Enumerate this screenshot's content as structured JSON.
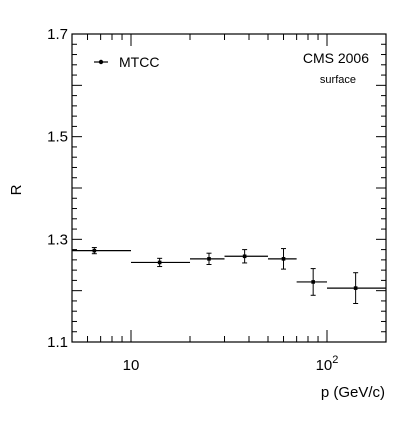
{
  "chart_data": {
    "type": "scatter",
    "xlabel": "p (GeV/c)",
    "ylabel": "R",
    "xscale": "log",
    "xlim": [
      5,
      200
    ],
    "ylim": [
      1.1,
      1.7
    ],
    "grid": false,
    "legend_placement": "top-left",
    "x_ticks": [
      {
        "value": 10,
        "label": "10"
      },
      {
        "value": 100,
        "label": "10",
        "sup": "2"
      }
    ],
    "y_ticks": [
      {
        "value": 1.1,
        "label": "1.1"
      },
      {
        "value": 1.3,
        "label": "1.3"
      },
      {
        "value": 1.5,
        "label": "1.5"
      },
      {
        "value": 1.7,
        "label": "1.7"
      }
    ],
    "series": [
      {
        "name": "MTCC",
        "points": [
          {
            "x": 6.5,
            "xlow": 5,
            "xhigh": 10,
            "y": 1.278,
            "yerr": 0.006
          },
          {
            "x": 14,
            "xlow": 10,
            "xhigh": 20,
            "y": 1.255,
            "yerr": 0.008
          },
          {
            "x": 25,
            "xlow": 20,
            "xhigh": 30,
            "y": 1.262,
            "yerr": 0.011
          },
          {
            "x": 38,
            "xlow": 30,
            "xhigh": 50,
            "y": 1.267,
            "yerr": 0.013
          },
          {
            "x": 60,
            "xlow": 50,
            "xhigh": 70,
            "y": 1.262,
            "yerr": 0.02
          },
          {
            "x": 85,
            "xlow": 70,
            "xhigh": 100,
            "y": 1.217,
            "yerr": 0.026
          },
          {
            "x": 140,
            "xlow": 100,
            "xhigh": 200,
            "y": 1.205,
            "yerr": 0.03
          }
        ]
      }
    ],
    "annotations": {
      "main": "CMS 2006",
      "sub": "surface"
    }
  }
}
